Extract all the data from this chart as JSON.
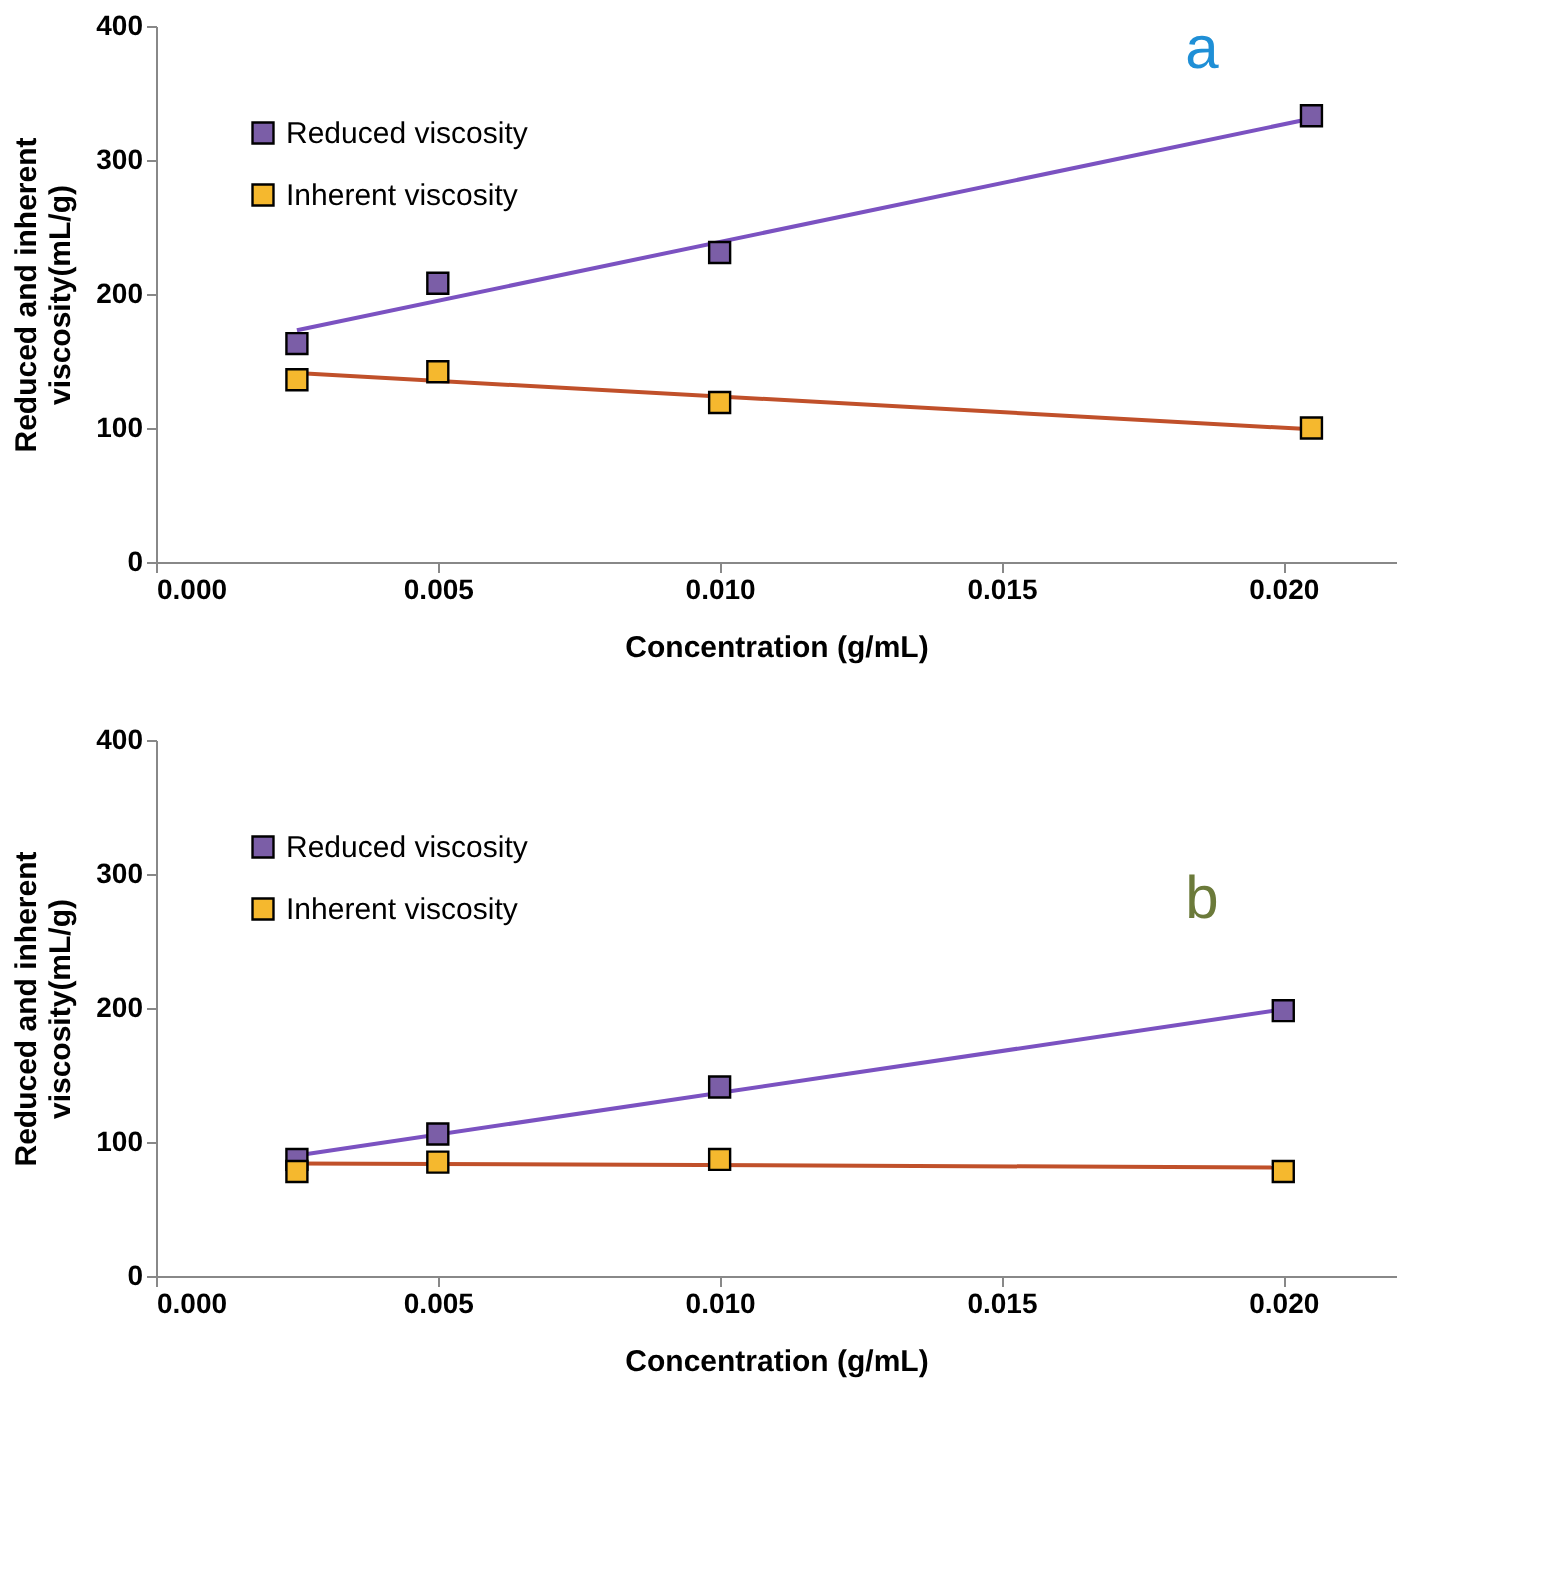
{
  "chart_data": [
    {
      "type": "scatter",
      "xlabel": "Concentration (g/mL)",
      "ylabel": "Reduced and inherent viscosity(mL/g)",
      "annotations": [
        "a"
      ],
      "xlim": [
        0,
        0.022
      ],
      "xticks": [
        {
          "value": 0,
          "label": "0.000"
        },
        {
          "value": 0.005,
          "label": "0.005"
        },
        {
          "value": 0.01,
          "label": "0.010"
        },
        {
          "value": 0.015,
          "label": "0.015"
        },
        {
          "value": 0.02,
          "label": "0.020"
        }
      ],
      "ylim": [
        0,
        400
      ],
      "yticks": [
        0,
        100,
        200,
        300,
        400
      ],
      "grid": false,
      "legend": "top left",
      "marker": "square",
      "x": [
        0.0025,
        0.005,
        0.01,
        0.0205
      ],
      "series": [
        {
          "name": "Reduced viscosity",
          "color": "#7b5ea7",
          "values": [
            163,
            208,
            231,
            333
          ]
        },
        {
          "name": "Inherent viscosity",
          "color": "#f5b82e",
          "values": [
            136,
            142,
            119,
            100
          ]
        },
        {
          "type": "line",
          "color": "#7b52c1",
          "x": [
            0.0025,
            0.0205
          ],
          "values": [
            173,
            331
          ],
          "line_style": "solid",
          "marker": "none"
        },
        {
          "type": "line",
          "color": "#c0502a",
          "x": [
            0.0025,
            0.0205
          ],
          "values": [
            141,
            99
          ],
          "line_style": "solid",
          "marker": "none"
        }
      ]
    },
    {
      "type": "scatter",
      "xlabel": "Concentration (g/mL)",
      "ylabel": "Reduced and inherent viscosity(mL/g)",
      "annotations": [
        "b"
      ],
      "xlim": [
        0,
        0.022
      ],
      "xticks": [
        {
          "value": 0,
          "label": "0.000"
        },
        {
          "value": 0.005,
          "label": "0.005"
        },
        {
          "value": 0.01,
          "label": "0.010"
        },
        {
          "value": 0.015,
          "label": "0.015"
        },
        {
          "value": 0.02,
          "label": "0.020"
        }
      ],
      "ylim": [
        0,
        400
      ],
      "yticks": [
        0,
        100,
        200,
        300,
        400
      ],
      "grid": false,
      "legend": "top left",
      "marker": "square",
      "x": [
        0.0025,
        0.005,
        0.01,
        0.02
      ],
      "series": [
        {
          "name": "Reduced viscosity",
          "color": "#7b5ea7",
          "values": [
            87,
            106,
            141,
            198
          ]
        },
        {
          "name": "Inherent viscosity",
          "color": "#f5b82e",
          "values": [
            78,
            85,
            87,
            78
          ]
        },
        {
          "type": "line",
          "color": "#7b52c1",
          "x": [
            0.0025,
            0.02
          ],
          "values": [
            90,
            199
          ],
          "line_style": "solid",
          "marker": "none"
        },
        {
          "type": "line",
          "color": "#c0502a",
          "x": [
            0.0025,
            0.02
          ],
          "values": [
            84,
            81
          ],
          "line_style": "solid",
          "marker": "none"
        }
      ]
    }
  ]
}
